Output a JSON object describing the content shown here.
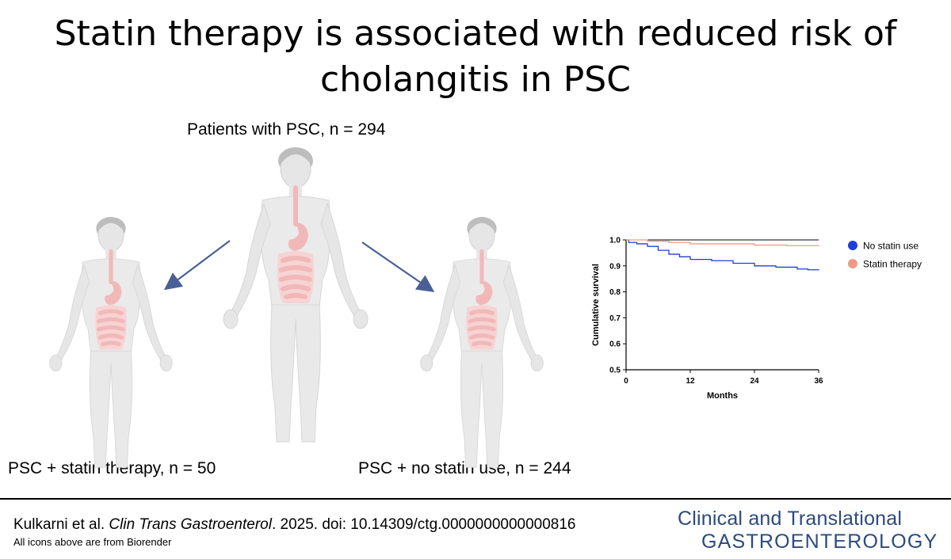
{
  "title": {
    "line1": "Statin therapy is associated with reduced risk of",
    "line2": "cholangitis in PSC"
  },
  "labels": {
    "total": "Patients with PSC, n = 294",
    "statin": "PSC + statin therapy, n = 50",
    "no_statin": "PSC + no statin use, n = 244"
  },
  "icons": {
    "person": "human-body-digestive-system-icon",
    "arrow": "arrow-icon",
    "arrow_color": "#4a5f96",
    "gut_color": "#f2b8b8"
  },
  "chart_data": {
    "type": "line",
    "xlabel": "Months",
    "ylabel": "Cumulative survival",
    "xlim": [
      0,
      36
    ],
    "ylim": [
      0.5,
      1.0
    ],
    "x_ticks": [
      "0",
      "12",
      "24",
      "36"
    ],
    "y_ticks": [
      "0.5",
      "0.6",
      "0.7",
      "0.8",
      "0.9",
      "1.0"
    ],
    "grid": false,
    "legend_position": "right",
    "series": [
      {
        "name": "No statin use",
        "color": "#1f3fd6",
        "points": [
          [
            0,
            1.0
          ],
          [
            0.5,
            0.99
          ],
          [
            2,
            0.985
          ],
          [
            4,
            0.975
          ],
          [
            6,
            0.96
          ],
          [
            8,
            0.945
          ],
          [
            10,
            0.935
          ],
          [
            12,
            0.925
          ],
          [
            16,
            0.92
          ],
          [
            20,
            0.91
          ],
          [
            24,
            0.9
          ],
          [
            28,
            0.895
          ],
          [
            32,
            0.888
          ],
          [
            34,
            0.885
          ],
          [
            36,
            0.883
          ]
        ]
      },
      {
        "name": "Statin therapy",
        "color": "#ef9a86",
        "points": [
          [
            0,
            1.0
          ],
          [
            4,
            0.995
          ],
          [
            8,
            0.99
          ],
          [
            12,
            0.985
          ],
          [
            18,
            0.985
          ],
          [
            24,
            0.98
          ],
          [
            30,
            0.978
          ],
          [
            36,
            0.976
          ]
        ]
      }
    ],
    "reference_line": {
      "y": 1.0,
      "color": "#000000"
    }
  },
  "footer": {
    "citation_authors": "Kulkarni et al.",
    "citation_journal": "Clin Trans Gastroenterol",
    "citation_rest": ". 2025. doi: 10.14309/ctg.0000000000000816",
    "credit": "All icons above are from Biorender",
    "journal_line1": "Clinical and Translational",
    "journal_line2": "GASTROENTEROLOGY",
    "journal_color": "#2b4a7e"
  }
}
